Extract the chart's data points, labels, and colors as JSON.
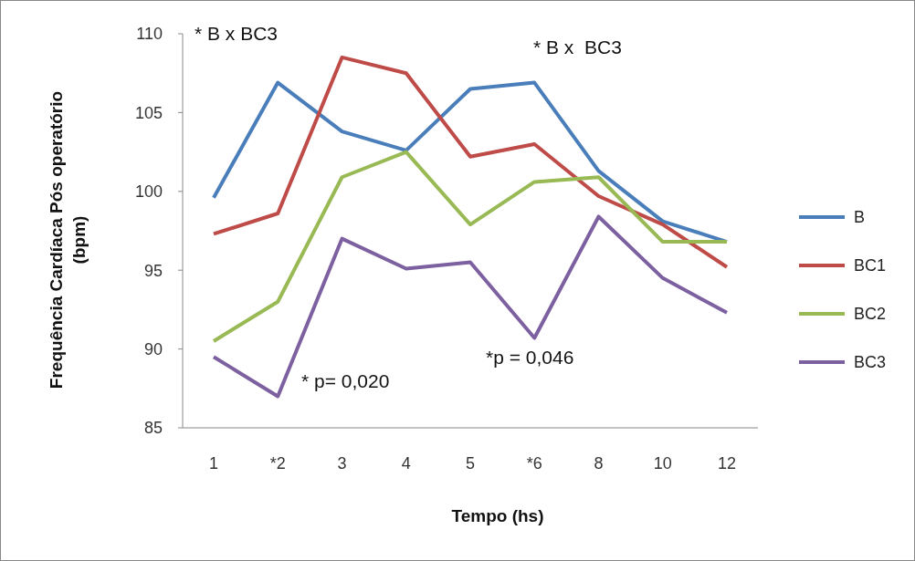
{
  "chart_data": {
    "type": "line",
    "xlabel": "Tempo (hs)",
    "ylabel": "Frequência Cardíaca Pós operatório (bpm)",
    "categories": [
      "1",
      "*2",
      "3",
      "4",
      "5",
      "*6",
      "8",
      "10",
      "12"
    ],
    "series": [
      {
        "name": "B",
        "color": "#4a7ebb",
        "values": [
          99.6,
          106.9,
          103.8,
          102.6,
          106.5,
          106.9,
          101.3,
          98.1,
          96.8
        ]
      },
      {
        "name": "BC1",
        "color": "#be4b48",
        "values": [
          97.3,
          98.6,
          108.5,
          107.5,
          102.2,
          103.0,
          99.7,
          97.9,
          95.2
        ]
      },
      {
        "name": "BC2",
        "color": "#98b954",
        "values": [
          90.5,
          93.0,
          100.9,
          102.5,
          97.9,
          100.6,
          100.9,
          96.8,
          96.8
        ]
      },
      {
        "name": "BC3",
        "color": "#7d60a0",
        "values": [
          89.5,
          87.0,
          97.0,
          95.1,
          95.5,
          90.7,
          98.4,
          94.5,
          92.3
        ]
      }
    ],
    "ylim": [
      85,
      110
    ],
    "yticks": [
      85,
      90,
      95,
      100,
      105,
      110
    ],
    "grid": false,
    "legend": "right",
    "marker": "none",
    "line_style": "solid",
    "annotations": [
      "* B x BC3",
      "* B x  BC3",
      "* p= 0,020",
      "*p = 0,046"
    ]
  }
}
